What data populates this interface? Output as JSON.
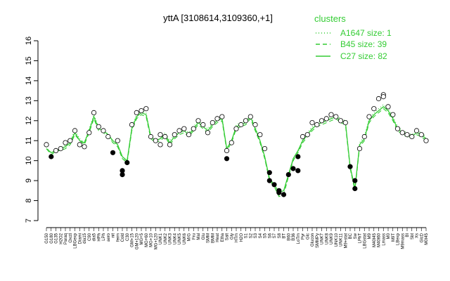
{
  "chart_data": {
    "type": "line",
    "title": "yttA [3108614,3109360,+1]",
    "xlabel": "",
    "ylabel": "",
    "ylim": [
      7,
      16
    ],
    "y_ticks": [
      7,
      8,
      9,
      10,
      11,
      12,
      13,
      14,
      15,
      16
    ],
    "grid": false,
    "legend_position": "top-right",
    "legend": {
      "title": "clusters",
      "entries": [
        {
          "label": "A1647 size: 1",
          "style": "dotted"
        },
        {
          "label": "B45 size: 39",
          "style": "dashed"
        },
        {
          "label": "C27 size: 82",
          "style": "solid"
        }
      ]
    },
    "x_tick_labels": [
      "G150",
      "G180",
      "G135",
      "H2O2",
      "Paraq",
      "Oxctl",
      "LBGexp",
      "Diami",
      "dia15",
      "C90",
      "dia5",
      "HPh",
      "LPh",
      "aero",
      "nit",
      "ferm",
      "Cold",
      "C30",
      "GM+15",
      "GM+120",
      "MG+5",
      "MG+60",
      "MG+10",
      "MG+120",
      "UNK1",
      "UNK2",
      "UNK3",
      "UNK4",
      "UNK5",
      "UNK6",
      "M/G",
      "Fru",
      "Mal",
      "Glu",
      "SMM",
      "BMM",
      "Heat",
      "Etha",
      "Salt",
      "Gly",
      "HTm",
      "H2O",
      "S1",
      "S2",
      "S3",
      "S4",
      "S5",
      "S6",
      "S7",
      "S8",
      "BT",
      "B60",
      "B36",
      "LoTm",
      "Pyr",
      "Glc",
      "Glucon",
      "SMMPy",
      "UNK7",
      "UNK8",
      "UNK9",
      "UNK10",
      "UNK11",
      "M9+stat",
      "BC",
      "Sw",
      "LPhT",
      "LBGstat",
      "M9",
      "M40t45",
      "M40t60",
      "Lmass",
      "M0",
      "M9T",
      "LBexp",
      "M9mass",
      "BI",
      "Sbt",
      "Xs",
      "GlcD",
      "M0t45"
    ],
    "series": [
      {
        "name": "C27 size: 82",
        "style": "solid",
        "values": [
          10.6,
          10.4,
          10.5,
          10.6,
          10.7,
          10.9,
          11.4,
          11.0,
          10.9,
          11.5,
          12.2,
          11.6,
          11.5,
          11.3,
          11.0,
          10.8,
          10.2,
          10.0,
          11.6,
          12.2,
          12.4,
          12.3,
          11.2,
          11.0,
          11.1,
          11.3,
          10.9,
          11.2,
          11.4,
          11.5,
          11.3,
          11.6,
          11.9,
          11.7,
          11.5,
          11.8,
          12.0,
          12.1,
          10.6,
          11.0,
          11.7,
          11.8,
          11.9,
          12.2,
          11.6,
          11.0,
          10.2,
          9.1,
          8.8,
          8.4,
          8.5,
          9.3,
          10.1,
          10.5,
          11.0,
          11.3,
          11.6,
          11.8,
          11.9,
          12.0,
          12.1,
          12.2,
          12.0,
          11.9,
          9.7,
          8.6,
          10.8,
          11.1,
          12.0,
          12.3,
          12.5,
          12.7,
          12.5,
          12.1,
          11.6,
          11.4,
          11.3,
          11.2,
          11.4,
          11.3,
          11.1
        ]
      },
      {
        "name": "B45 size: 39",
        "style": "dashed",
        "values": [
          10.6,
          10.3,
          10.5,
          10.5,
          10.6,
          10.8,
          11.3,
          11.0,
          10.8,
          11.4,
          12.1,
          11.5,
          11.4,
          11.2,
          10.9,
          10.7,
          10.1,
          9.9,
          11.5,
          12.1,
          12.3,
          12.2,
          11.1,
          10.9,
          11.0,
          11.2,
          10.8,
          11.1,
          11.3,
          11.4,
          11.2,
          11.5,
          11.8,
          11.6,
          11.4,
          11.7,
          11.9,
          12.0,
          10.5,
          10.9,
          11.6,
          11.7,
          11.8,
          12.1,
          11.5,
          10.9,
          10.1,
          9.0,
          8.7,
          8.2,
          8.3,
          9.2,
          10.0,
          10.4,
          10.9,
          11.2,
          11.5,
          11.7,
          11.8,
          11.9,
          12.0,
          12.1,
          11.9,
          11.8,
          9.6,
          8.5,
          10.7,
          11.0,
          11.9,
          12.2,
          12.4,
          12.6,
          12.4,
          12.0,
          11.5,
          11.3,
          11.2,
          11.1,
          11.3,
          11.2,
          11.0
        ]
      },
      {
        "name": "A1647 size: 1",
        "style": "dotted",
        "values": [
          10.7,
          10.3,
          10.4,
          10.6,
          10.8,
          11.0,
          11.5,
          11.1,
          10.9,
          11.6,
          12.3,
          11.7,
          11.6,
          11.3,
          10.9,
          10.8,
          10.1,
          10.0,
          11.7,
          12.3,
          12.5,
          12.4,
          11.2,
          11.0,
          11.1,
          11.4,
          11.0,
          11.3,
          11.5,
          11.6,
          11.4,
          11.7,
          12.0,
          11.8,
          11.6,
          11.9,
          12.1,
          12.2,
          10.5,
          10.9,
          11.8,
          11.9,
          12.0,
          12.3,
          11.7,
          11.0,
          10.1,
          9.0,
          8.7,
          8.2,
          8.4,
          9.2,
          10.0,
          10.4,
          11.1,
          11.4,
          11.7,
          11.9,
          12.0,
          12.1,
          12.2,
          12.3,
          12.1,
          12.0,
          9.6,
          8.5,
          10.9,
          11.2,
          12.1,
          12.4,
          12.6,
          12.8,
          12.6,
          12.2,
          11.7,
          11.5,
          11.4,
          11.3,
          11.5,
          11.4,
          11.2
        ]
      }
    ],
    "points": {
      "values": [
        10.8,
        10.2,
        10.5,
        10.6,
        10.9,
        11.0,
        11.5,
        10.8,
        10.7,
        11.4,
        12.4,
        11.7,
        11.5,
        11.2,
        10.4,
        11.0,
        9.5,
        9.9,
        11.8,
        12.4,
        12.5,
        12.6,
        11.2,
        11.0,
        11.3,
        11.2,
        10.8,
        11.3,
        11.5,
        11.6,
        11.3,
        11.6,
        12.0,
        11.8,
        11.4,
        11.9,
        12.1,
        12.2,
        10.5,
        10.9,
        11.6,
        11.8,
        12.0,
        12.2,
        11.8,
        11.3,
        10.6,
        9.0,
        8.8,
        8.5,
        8.3,
        9.3,
        9.6,
        10.2,
        11.2,
        11.3,
        11.9,
        11.8,
        12.0,
        12.1,
        12.3,
        12.2,
        12.0,
        11.9,
        9.7,
        8.6,
        10.6,
        11.2,
        12.2,
        12.6,
        13.1,
        13.3,
        12.7,
        12.3,
        11.6,
        11.4,
        11.3,
        11.2,
        11.5,
        11.3,
        11.0
      ],
      "extra": [
        {
          "x": 16,
          "y": 9.3
        },
        {
          "x": 47,
          "y": 9.4
        },
        {
          "x": 49,
          "y": 8.4
        },
        {
          "x": 65,
          "y": 9.0
        },
        {
          "x": 71,
          "y": 13.2
        },
        {
          "x": 38,
          "y": 10.1
        },
        {
          "x": 53,
          "y": 9.5
        },
        {
          "x": 24,
          "y": 10.8
        }
      ]
    }
  },
  "colors": {
    "series": "#33cc33",
    "points_fill": "#ffffff",
    "points_stroke": "#000000",
    "axis": "#000000"
  }
}
